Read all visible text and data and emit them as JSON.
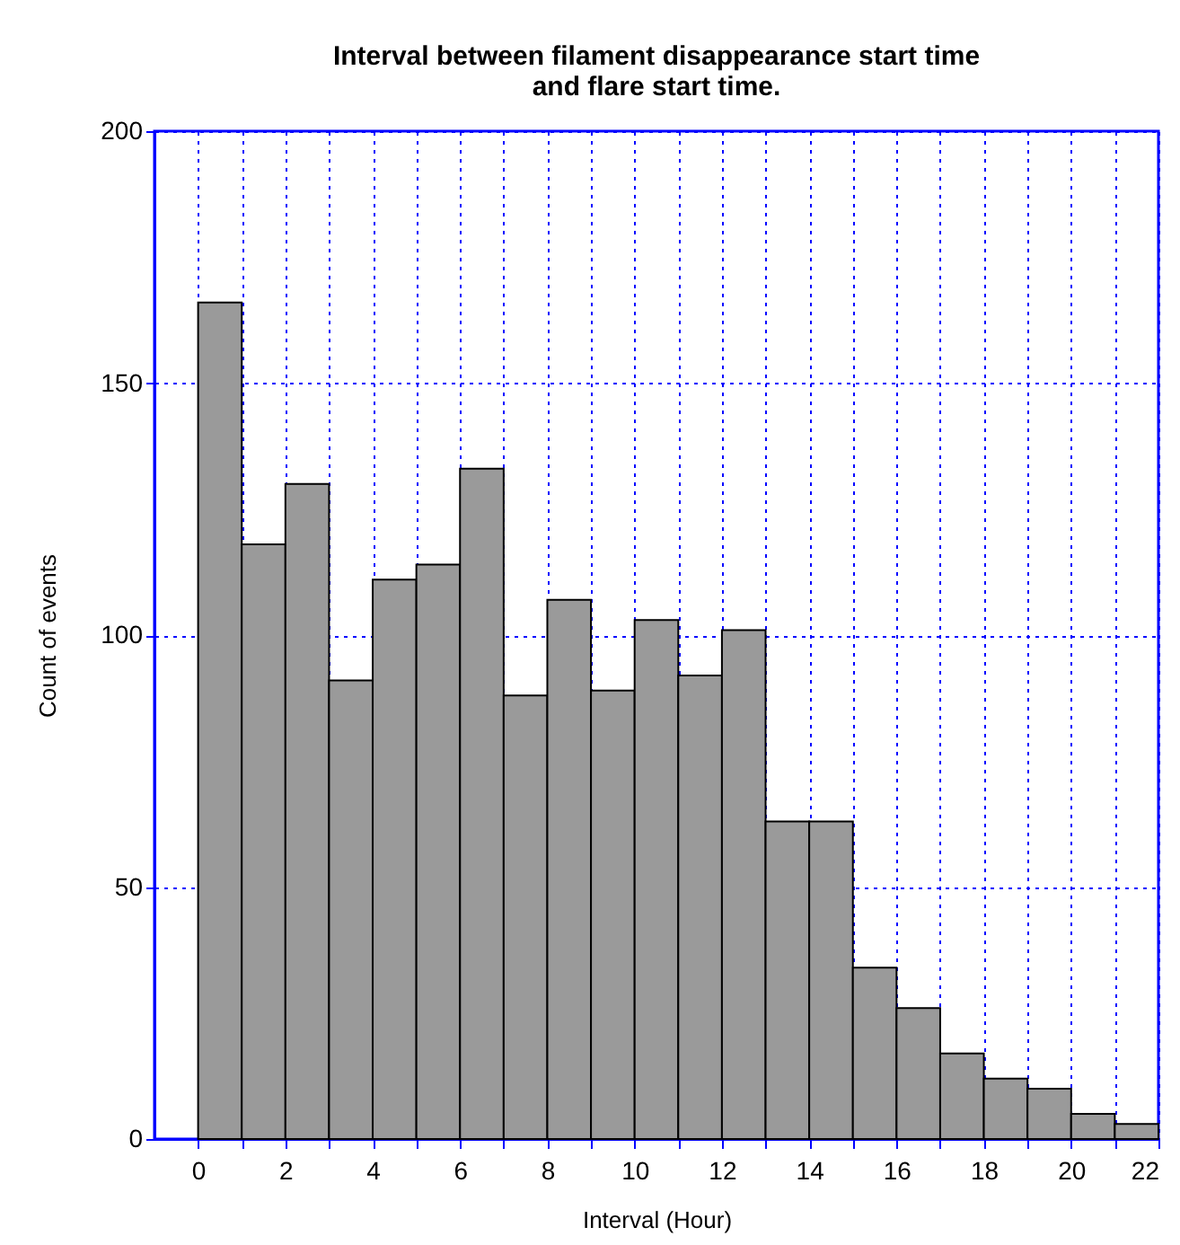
{
  "chart_data": {
    "type": "histogram",
    "title": "Interval between filament disappearance start time and flare start time.",
    "xlabel": "Interval (Hour)",
    "ylabel": "Count of events",
    "bins": [
      0,
      1,
      2,
      3,
      4,
      5,
      6,
      7,
      8,
      9,
      10,
      11,
      12,
      13,
      14,
      15,
      16,
      17,
      18,
      19,
      20,
      21,
      22
    ],
    "values": [
      166,
      118,
      130,
      91,
      111,
      114,
      133,
      88,
      107,
      89,
      103,
      92,
      101,
      63,
      63,
      34,
      26,
      17,
      12,
      10,
      5,
      3
    ],
    "color": "#9a9a9a",
    "xlim": [
      -1,
      22
    ],
    "ylim": [
      0,
      200
    ],
    "xticks": [
      0,
      {
        "value": 1,
        "label": null
      },
      2,
      {
        "value": 3,
        "label": null
      },
      4,
      {
        "value": 5,
        "label": null
      },
      6,
      {
        "value": 7,
        "label": null
      },
      8,
      {
        "value": 9,
        "label": null
      },
      10,
      {
        "value": 11,
        "label": null
      },
      12,
      {
        "value": 13,
        "label": null
      },
      14,
      {
        "value": 15,
        "label": null
      },
      16,
      {
        "value": 17,
        "label": null
      },
      18,
      {
        "value": 19,
        "label": null
      },
      20,
      {
        "value": 21,
        "label": null
      },
      22
    ],
    "yticks": [
      0,
      50,
      100,
      150,
      200
    ],
    "grid": true
  }
}
